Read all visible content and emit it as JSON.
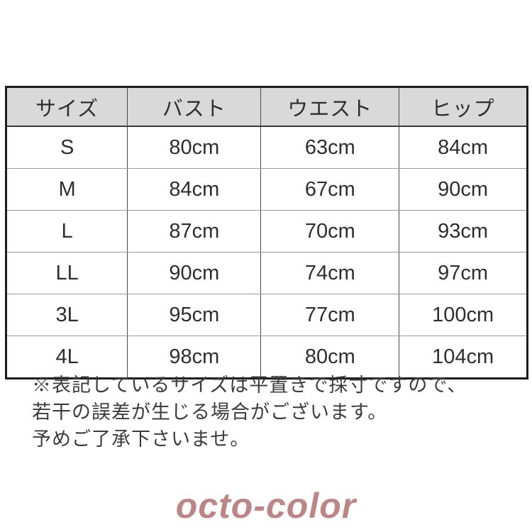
{
  "table": {
    "headers": [
      "サイズ",
      "バスト",
      "ウエスト",
      "ヒップ"
    ],
    "rows": [
      {
        "size": "S",
        "bust": "80cm",
        "waist": "63cm",
        "hip": "84cm"
      },
      {
        "size": "M",
        "bust": "84cm",
        "waist": "67cm",
        "hip": "90cm"
      },
      {
        "size": "L",
        "bust": "87cm",
        "waist": "70cm",
        "hip": "93cm"
      },
      {
        "size": "LL",
        "bust": "90cm",
        "waist": "74cm",
        "hip": "97cm"
      },
      {
        "size": "3L",
        "bust": "95cm",
        "waist": "77cm",
        "hip": "100cm"
      },
      {
        "size": "4L",
        "bust": "98cm",
        "waist": "80cm",
        "hip": "104cm"
      }
    ]
  },
  "note": {
    "lines": [
      "※表記しているサイズは平置きで採寸ですので、",
      "若干の誤差が生じる場合がございます。",
      "予めご了承下さいませ。"
    ]
  },
  "watermark": {
    "text": "octo-color",
    "color": "#bd8686"
  },
  "colors": {
    "header_background": "#d9d9d9",
    "outer_border": "#1c1c1c",
    "inner_grid": "#9b9b9b",
    "text": "#2e2e2e"
  }
}
